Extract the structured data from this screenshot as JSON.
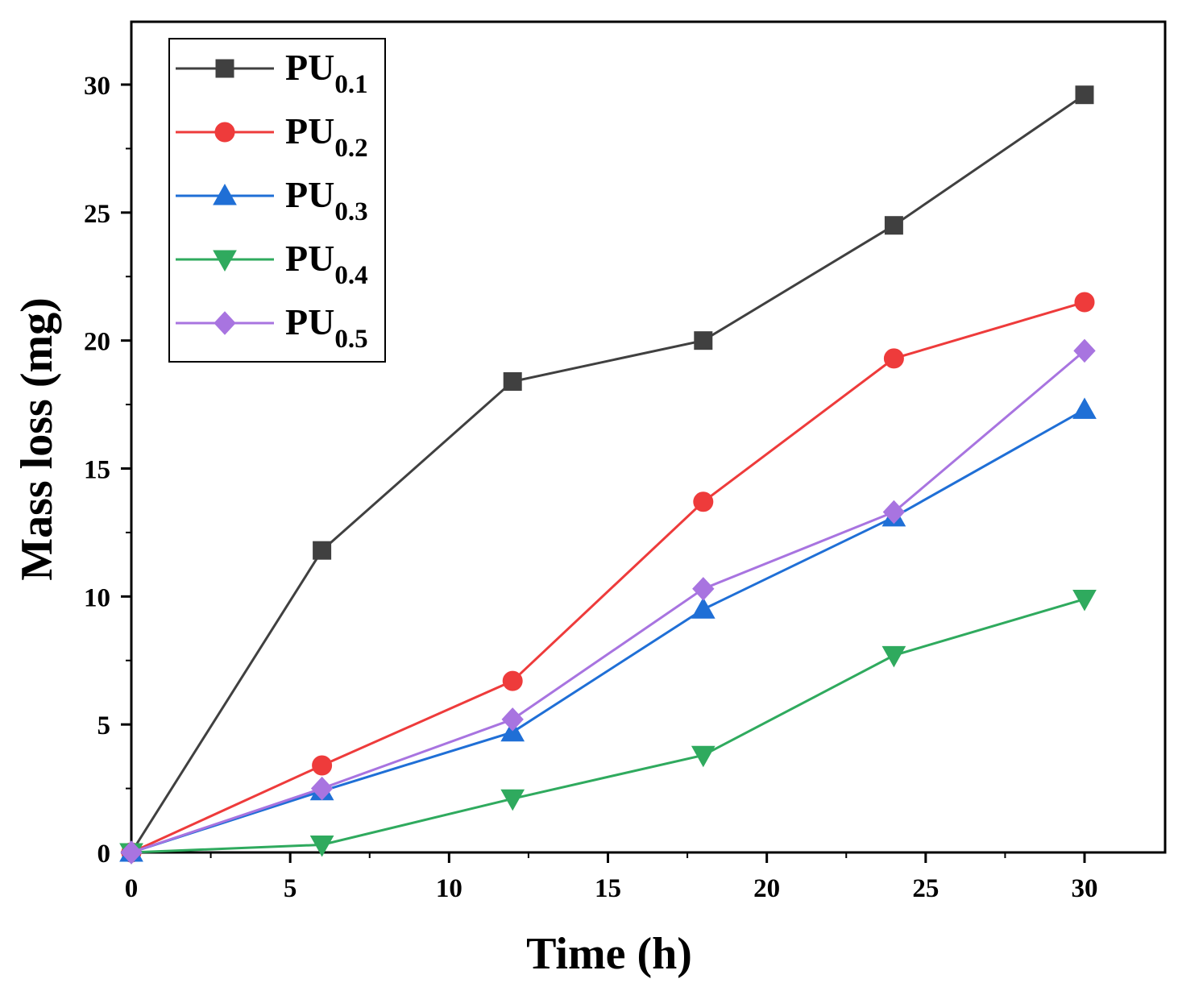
{
  "chart_data": {
    "type": "line",
    "title": "",
    "xlabel": "Time (h)",
    "ylabel": "Mass loss (mg)",
    "xlim": [
      0,
      32.5
    ],
    "ylim": [
      0,
      32.5
    ],
    "xticks": [
      0,
      5,
      10,
      15,
      20,
      25,
      30
    ],
    "yticks": [
      0,
      5,
      10,
      15,
      20,
      25,
      30
    ],
    "grid": false,
    "legend_position": "top-left",
    "x": [
      0,
      6,
      12,
      18,
      24,
      30
    ],
    "series": [
      {
        "name": "PU0.1",
        "base": "PU",
        "sub": "0.1",
        "color": "#404040",
        "marker": "square",
        "values": [
          0,
          11.8,
          18.4,
          20.0,
          24.5,
          29.6
        ]
      },
      {
        "name": "PU0.2",
        "base": "PU",
        "sub": "0.2",
        "color": "#ee3b3b",
        "marker": "circle",
        "values": [
          0,
          3.4,
          6.7,
          13.7,
          19.3,
          21.5
        ]
      },
      {
        "name": "PU0.3",
        "base": "PU",
        "sub": "0.3",
        "color": "#1f6fd6",
        "marker": "triangle-up",
        "values": [
          0,
          2.4,
          4.7,
          9.5,
          13.1,
          17.3
        ]
      },
      {
        "name": "PU0.4",
        "base": "PU",
        "sub": "0.4",
        "color": "#2faa5e",
        "marker": "triangle-down",
        "values": [
          0,
          0.3,
          2.1,
          3.8,
          7.7,
          9.9
        ]
      },
      {
        "name": "PU0.5",
        "base": "PU",
        "sub": "0.5",
        "color": "#a874e0",
        "marker": "diamond",
        "values": [
          0,
          2.5,
          5.2,
          10.3,
          13.3,
          19.6
        ]
      }
    ]
  }
}
